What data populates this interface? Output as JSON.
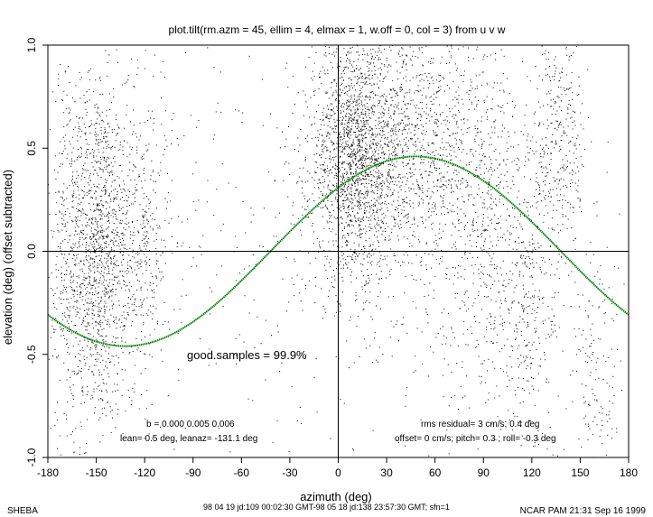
{
  "chart_data": {
    "type": "scatter",
    "title": "plot.tilt(rm.azm = 45, ellim = 4, elmax = 1, w.off = 0, col = 3) from u v w",
    "xlabel": "azimuth (deg)",
    "ylabel": "elevation (deg)  (offset subtracted)",
    "xlim": [
      -180,
      180
    ],
    "ylim": [
      -1.0,
      1.0
    ],
    "xticks": [
      -180,
      -150,
      -120,
      -90,
      -60,
      -30,
      0,
      30,
      60,
      90,
      120,
      150,
      180
    ],
    "yticks": [
      -1.0,
      -0.5,
      0.0,
      0.5,
      1.0
    ],
    "ytick_labels": [
      "-1.0",
      "-0.5",
      "0.0",
      "0.5",
      "1.0"
    ],
    "grid": false,
    "zero_lines": true,
    "series": [
      {
        "kind": "scatter",
        "color": "#000000",
        "clusters": [
          {
            "x": -150,
            "y": 0.0,
            "sx": 9,
            "sy": 0.42,
            "n": 1100
          },
          {
            "x": -127,
            "y": 0.05,
            "sx": 12,
            "sy": 0.35,
            "n": 550
          },
          {
            "x": -168,
            "y": 0.0,
            "sx": 6,
            "sy": 0.5,
            "n": 300
          },
          {
            "x": 10,
            "y": 0.45,
            "sx": 14,
            "sy": 0.28,
            "n": 1700
          },
          {
            "x": 45,
            "y": 0.5,
            "sx": 26,
            "sy": 0.32,
            "n": 1300
          },
          {
            "x": 90,
            "y": 0.15,
            "sx": 14,
            "sy": 0.45,
            "n": 450
          },
          {
            "x": 118,
            "y": -0.2,
            "sx": 10,
            "sy": 0.45,
            "n": 350
          },
          {
            "x": 138,
            "y": 0.55,
            "sx": 8,
            "sy": 0.3,
            "n": 300
          },
          {
            "x": 160,
            "y": -0.6,
            "sx": 8,
            "sy": 0.3,
            "n": 140
          },
          {
            "x": 0,
            "y": 0.0,
            "sx": 110,
            "sy": 0.6,
            "n": 700
          }
        ]
      },
      {
        "kind": "fit",
        "color": "#008000",
        "offset": 0.0,
        "tilt": 0.46,
        "azimuth": 48
      }
    ],
    "annotations": {
      "good_samples": "good.samples = 99.9%",
      "b_coef": "b = 0.000 0.005 0.006",
      "lean": "lean= 0.5 deg, leanaz=  -131.1 deg",
      "rms": "rms residual= 3 cm/s, 0.4 deg",
      "offset_pitch_roll": "offset= 0 cm/s; pitch=  0.3 ; roll= -0.3 deg"
    }
  },
  "footer": {
    "left": "SHEBA",
    "center": "98 04 19 jd:109 00:02:30 GMT-98 05 18 jd:138 23:57:30 GMT; sfn=1",
    "right": "NCAR PAM 21:31 Sep 16 1999"
  }
}
